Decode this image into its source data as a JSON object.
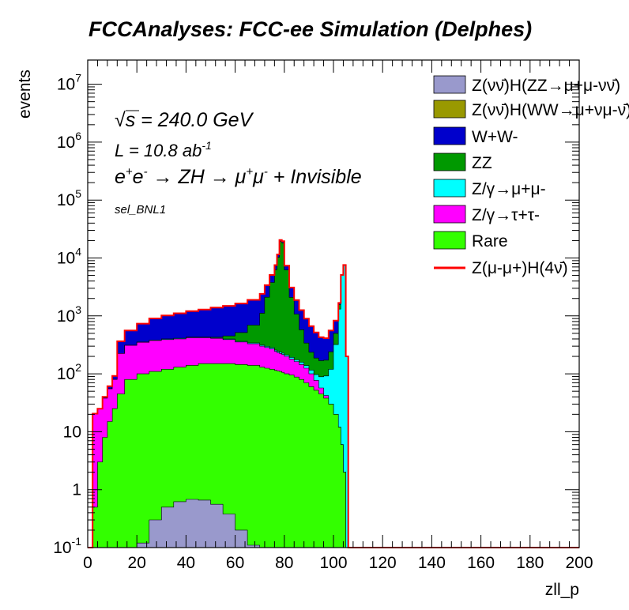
{
  "chart_data": {
    "type": "area",
    "title": "FCCAnalyses: FCC-ee Simulation (Delphes)",
    "xlabel": "zll_p",
    "ylabel": "events",
    "xlim": [
      0,
      200
    ],
    "ylim": [
      0.1,
      20000000
    ],
    "yscale": "log",
    "x_ticks": [
      "0",
      "20",
      "40",
      "60",
      "80",
      "100",
      "120",
      "140",
      "160",
      "180",
      "200"
    ],
    "y_ticks": [
      "10^-1",
      "1",
      "10",
      "10^2",
      "10^3",
      "10^4",
      "10^5",
      "10^6",
      "10^7"
    ],
    "annotations": {
      "energy": "√s = 240.0 GeV",
      "lumi": "L = 10.8 ab^-1",
      "process": "e+e- → ZH → μ+μ- + Invisible",
      "selection": "sel_BNL1"
    },
    "legend_position": "top-right",
    "x_points": [
      0,
      2,
      4,
      6,
      8,
      10,
      12,
      15,
      20,
      25,
      30,
      35,
      40,
      45,
      50,
      55,
      60,
      65,
      70,
      72,
      74,
      76,
      77,
      78,
      79,
      80,
      82,
      84,
      86,
      88,
      90,
      92,
      94,
      96,
      98,
      100,
      102,
      103,
      104,
      105,
      106
    ],
    "series": [
      {
        "name": "Z(νν̄)H(ZZ→μ+μ-νν̄)",
        "color": "#9999cc",
        "values": [
          0,
          0,
          0,
          0,
          0,
          0,
          0,
          0,
          0.12,
          0.3,
          0.5,
          0.62,
          0.68,
          0.66,
          0.56,
          0.38,
          0.2,
          0.11,
          0,
          0,
          0,
          0,
          0,
          0,
          0,
          0,
          0,
          0,
          0,
          0,
          0,
          0,
          0,
          0,
          0,
          0,
          0,
          0,
          0,
          0,
          0
        ]
      },
      {
        "name": "Z(νν̄)H(WW→μ+νμ-ν̄)",
        "color": "#999900",
        "values": [
          0,
          0,
          0,
          0,
          0,
          0,
          0,
          0,
          0,
          0,
          0,
          0,
          0,
          0,
          0,
          0,
          0,
          0,
          0,
          0,
          0,
          0,
          0,
          0,
          0,
          0,
          0,
          0,
          0,
          0,
          0,
          0,
          0,
          0,
          0,
          0,
          0,
          0,
          0,
          0,
          0
        ]
      },
      {
        "name": "W+W-",
        "color": "#0000cc",
        "values": [
          0,
          0,
          0,
          2,
          6,
          12,
          140,
          250,
          380,
          520,
          620,
          700,
          780,
          860,
          960,
          1040,
          1120,
          1200,
          1290,
          1300,
          1300,
          1280,
          1280,
          1260,
          1240,
          1170,
          1000,
          800,
          680,
          560,
          430,
          330,
          260,
          240,
          320,
          330,
          110,
          0,
          0,
          0,
          0
        ]
      },
      {
        "name": "ZZ",
        "color": "#009900",
        "values": [
          0,
          0,
          0,
          0,
          0,
          0,
          0,
          0,
          0,
          0,
          0,
          0,
          0,
          0,
          10,
          50,
          150,
          350,
          800,
          1800,
          3500,
          6000,
          10000,
          19000,
          18000,
          6000,
          1900,
          900,
          420,
          200,
          120,
          90,
          80,
          80,
          120,
          180,
          250,
          100,
          50,
          0,
          0
        ]
      },
      {
        "name": "Z/γ→μ+μ-",
        "color": "#00ffff",
        "values": [
          0,
          0,
          0,
          0,
          0,
          0,
          0,
          1,
          4,
          8,
          10,
          10,
          10,
          10,
          10,
          10,
          10,
          12,
          13,
          13,
          12,
          12,
          12,
          12,
          12,
          12,
          12,
          12,
          13,
          14,
          16,
          20,
          32,
          50,
          90,
          300,
          1300,
          5000,
          7500,
          200,
          0
        ]
      },
      {
        "name": "Z/γ→τ+τ-",
        "color": "#ff00ff",
        "values": [
          0,
          20,
          22,
          30,
          40,
          55,
          180,
          230,
          250,
          265,
          270,
          270,
          280,
          270,
          260,
          240,
          210,
          190,
          170,
          160,
          150,
          130,
          120,
          115,
          110,
          100,
          85,
          75,
          65,
          55,
          40,
          25,
          12,
          4,
          0,
          0,
          0,
          0,
          0,
          0,
          0
        ]
      },
      {
        "name": "Rare",
        "color": "#33ff00",
        "values": [
          0.1,
          0.5,
          3,
          8,
          15,
          25,
          45,
          80,
          100,
          110,
          120,
          130,
          140,
          150,
          150,
          150,
          145,
          140,
          130,
          125,
          120,
          115,
          112,
          110,
          105,
          100,
          95,
          88,
          80,
          70,
          60,
          52,
          45,
          38,
          30,
          20,
          12,
          6,
          2,
          0,
          0
        ]
      }
    ],
    "signal": {
      "name": "Z(μ-μ+)H(4ν̄)",
      "color": "#ff0000"
    },
    "legend_labels": {
      "zzmm": "Z(νν̄)H(ZZ→μ+μ-νν̄)",
      "wwmm": "Z(νν̄)H(WW→μ+νμ-ν̄)",
      "ww": "W+W-",
      "zz": "ZZ",
      "zgmm": "Z/γ→μ+μ-",
      "zgtt": "Z/γ→τ+τ-",
      "rare": "Rare",
      "signal": "Z(μ-μ+)H(4ν̄)"
    }
  }
}
